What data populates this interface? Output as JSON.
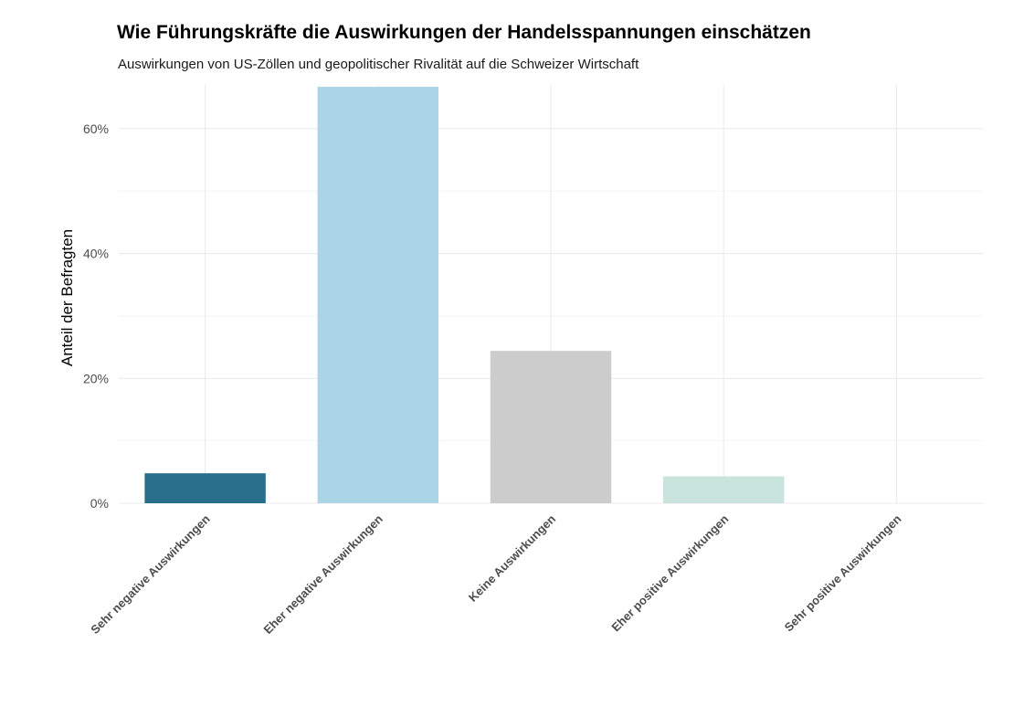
{
  "chart_data": {
    "type": "bar",
    "title": "Wie Führungskräfte die Auswirkungen der Handelsspannungen einschätzen",
    "subtitle": "Auswirkungen von US-Zöllen und geopolitischer Rivalität auf die Schweizer Wirtschaft",
    "xlabel": "",
    "ylabel": "Anteil der Befragten",
    "categories": [
      "Sehr negative Auswirkungen",
      "Eher negative Auswirkungen",
      "Keine Auswirkungen",
      "Eher positive Auswirkungen",
      "Sehr positive Auswirkungen"
    ],
    "values": [
      0.048,
      0.667,
      0.244,
      0.043,
      0.0
    ],
    "colors": [
      "#296e8a",
      "#abd5e7",
      "#cccccc",
      "#c8e4dc",
      "#ffffff"
    ],
    "ylim": [
      0,
      0.67
    ],
    "yticks": [
      0,
      0.2,
      0.4,
      0.6
    ],
    "ytick_labels": [
      "0%",
      "20%",
      "40%",
      "60%"
    ],
    "grid": true,
    "legend": "none"
  }
}
